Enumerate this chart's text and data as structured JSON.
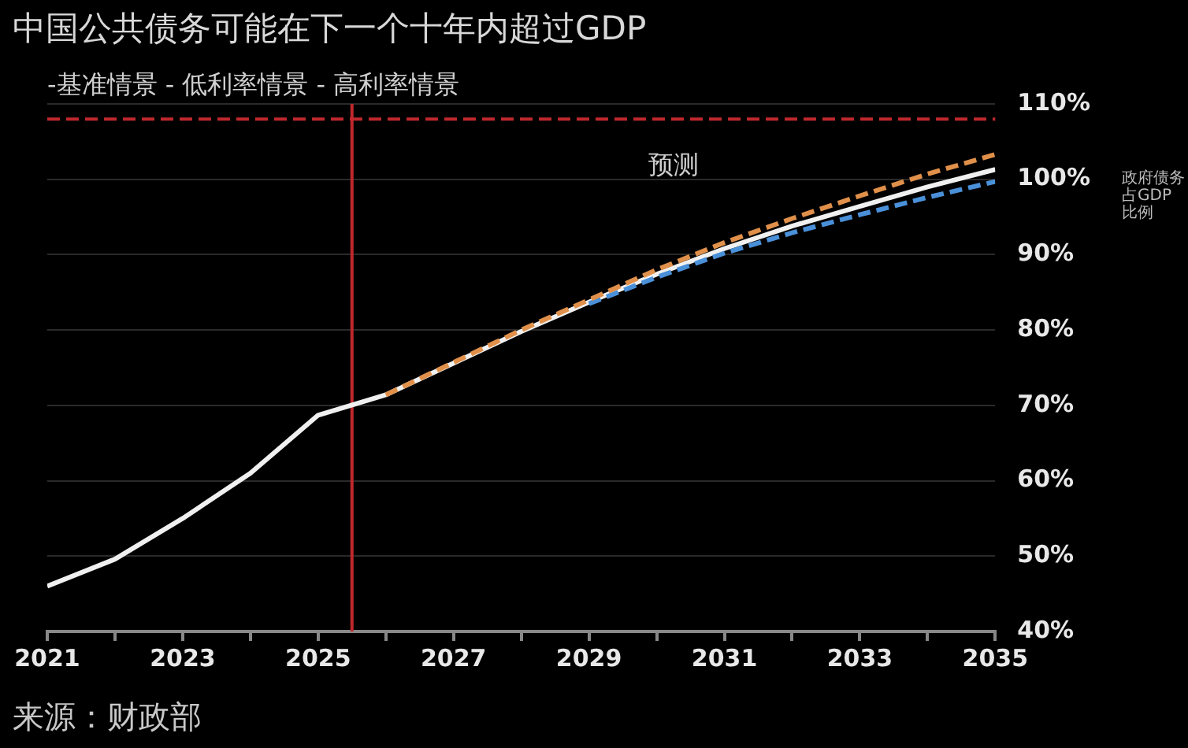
{
  "chart_data": {
    "type": "line",
    "title": "中国公共债务可能在下一个十年内超过GDP",
    "subtitle": "-基准情景 - 低利率情景 - 高利率情景",
    "ylabel": "政府债务占GDP比例",
    "annotations": [
      "预测",
      "来源：财政部"
    ],
    "xlim": [
      2021,
      2035
    ],
    "xticks": [
      2021,
      {
        "value": 2022,
        "label": null
      },
      2023,
      {
        "value": 2024,
        "label": null
      },
      2025,
      {
        "value": 2026,
        "label": null
      },
      2027,
      {
        "value": 2028,
        "label": null
      },
      2029,
      {
        "value": 2030,
        "label": null
      },
      2031,
      {
        "value": 2032,
        "label": null
      },
      2033,
      {
        "value": 2034,
        "label": null
      },
      2035
    ],
    "ylim": [
      40,
      110
    ],
    "yticks": [
      {
        "value": 40,
        "label": "40%"
      },
      {
        "value": 50,
        "label": "50%"
      },
      {
        "value": 60,
        "label": "60%"
      },
      {
        "value": 70,
        "label": "70%"
      },
      {
        "value": 80,
        "label": "80%"
      },
      {
        "value": 90,
        "label": "90%"
      },
      {
        "value": 100,
        "label": "100%"
      },
      {
        "value": 110,
        "label": "110%"
      }
    ],
    "grid": "y",
    "legend": false,
    "marker": "none",
    "series": [
      {
        "color": "#f0f0f0",
        "line_style": "solid",
        "x": [
          2021,
          2022,
          2023,
          2024,
          2025,
          2026,
          2027,
          2028,
          2029,
          2030,
          2031,
          2032,
          2033,
          2034,
          2035
        ],
        "values": [
          46,
          49.6,
          55,
          61,
          68.7,
          71.4,
          75.6,
          79.8,
          83.7,
          87.4,
          90.8,
          93.8,
          96.4,
          99,
          101.3
        ]
      },
      {
        "color": "#4a90d9",
        "line_style": "dashed",
        "x": [
          2029,
          2030,
          2031,
          2032,
          2033,
          2034,
          2035
        ],
        "values": [
          83.5,
          87,
          90.2,
          92.9,
          95.3,
          97.6,
          99.7
        ]
      },
      {
        "color": "#e0904a",
        "line_style": "dashed",
        "x": [
          2026,
          2027,
          2028,
          2029,
          2030,
          2031,
          2032,
          2033,
          2034,
          2035
        ],
        "values": [
          71.4,
          75.7,
          80,
          84,
          88,
          91.6,
          94.8,
          97.8,
          100.7,
          103.3
        ]
      }
    ],
    "ref_lines": [
      {
        "axis": "x",
        "value": 2025.5,
        "color": "#c0282d",
        "line_style": "solid"
      },
      {
        "axis": "y",
        "value": 108,
        "color": "#c0282d",
        "line_style": "dashed"
      }
    ]
  }
}
